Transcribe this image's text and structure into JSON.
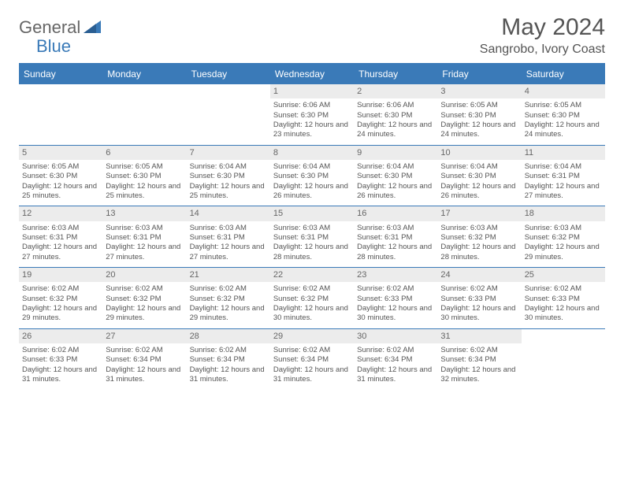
{
  "brand": {
    "part1": "General",
    "part2": "Blue"
  },
  "title": {
    "month_year": "May 2024",
    "location": "Sangrobo, Ivory Coast"
  },
  "colors": {
    "accent": "#3a7ab8",
    "header_text": "#ffffff",
    "daynum_bg": "#ececec",
    "body_text": "#555555",
    "background": "#ffffff"
  },
  "calendar": {
    "day_headers": [
      "Sunday",
      "Monday",
      "Tuesday",
      "Wednesday",
      "Thursday",
      "Friday",
      "Saturday"
    ],
    "weeks": [
      [
        null,
        null,
        null,
        {
          "n": "1",
          "sr": "6:06 AM",
          "ss": "6:30 PM",
          "dl": "12 hours and 23 minutes."
        },
        {
          "n": "2",
          "sr": "6:06 AM",
          "ss": "6:30 PM",
          "dl": "12 hours and 24 minutes."
        },
        {
          "n": "3",
          "sr": "6:05 AM",
          "ss": "6:30 PM",
          "dl": "12 hours and 24 minutes."
        },
        {
          "n": "4",
          "sr": "6:05 AM",
          "ss": "6:30 PM",
          "dl": "12 hours and 24 minutes."
        }
      ],
      [
        {
          "n": "5",
          "sr": "6:05 AM",
          "ss": "6:30 PM",
          "dl": "12 hours and 25 minutes."
        },
        {
          "n": "6",
          "sr": "6:05 AM",
          "ss": "6:30 PM",
          "dl": "12 hours and 25 minutes."
        },
        {
          "n": "7",
          "sr": "6:04 AM",
          "ss": "6:30 PM",
          "dl": "12 hours and 25 minutes."
        },
        {
          "n": "8",
          "sr": "6:04 AM",
          "ss": "6:30 PM",
          "dl": "12 hours and 26 minutes."
        },
        {
          "n": "9",
          "sr": "6:04 AM",
          "ss": "6:30 PM",
          "dl": "12 hours and 26 minutes."
        },
        {
          "n": "10",
          "sr": "6:04 AM",
          "ss": "6:30 PM",
          "dl": "12 hours and 26 minutes."
        },
        {
          "n": "11",
          "sr": "6:04 AM",
          "ss": "6:31 PM",
          "dl": "12 hours and 27 minutes."
        }
      ],
      [
        {
          "n": "12",
          "sr": "6:03 AM",
          "ss": "6:31 PM",
          "dl": "12 hours and 27 minutes."
        },
        {
          "n": "13",
          "sr": "6:03 AM",
          "ss": "6:31 PM",
          "dl": "12 hours and 27 minutes."
        },
        {
          "n": "14",
          "sr": "6:03 AM",
          "ss": "6:31 PM",
          "dl": "12 hours and 27 minutes."
        },
        {
          "n": "15",
          "sr": "6:03 AM",
          "ss": "6:31 PM",
          "dl": "12 hours and 28 minutes."
        },
        {
          "n": "16",
          "sr": "6:03 AM",
          "ss": "6:31 PM",
          "dl": "12 hours and 28 minutes."
        },
        {
          "n": "17",
          "sr": "6:03 AM",
          "ss": "6:32 PM",
          "dl": "12 hours and 28 minutes."
        },
        {
          "n": "18",
          "sr": "6:03 AM",
          "ss": "6:32 PM",
          "dl": "12 hours and 29 minutes."
        }
      ],
      [
        {
          "n": "19",
          "sr": "6:02 AM",
          "ss": "6:32 PM",
          "dl": "12 hours and 29 minutes."
        },
        {
          "n": "20",
          "sr": "6:02 AM",
          "ss": "6:32 PM",
          "dl": "12 hours and 29 minutes."
        },
        {
          "n": "21",
          "sr": "6:02 AM",
          "ss": "6:32 PM",
          "dl": "12 hours and 29 minutes."
        },
        {
          "n": "22",
          "sr": "6:02 AM",
          "ss": "6:32 PM",
          "dl": "12 hours and 30 minutes."
        },
        {
          "n": "23",
          "sr": "6:02 AM",
          "ss": "6:33 PM",
          "dl": "12 hours and 30 minutes."
        },
        {
          "n": "24",
          "sr": "6:02 AM",
          "ss": "6:33 PM",
          "dl": "12 hours and 30 minutes."
        },
        {
          "n": "25",
          "sr": "6:02 AM",
          "ss": "6:33 PM",
          "dl": "12 hours and 30 minutes."
        }
      ],
      [
        {
          "n": "26",
          "sr": "6:02 AM",
          "ss": "6:33 PM",
          "dl": "12 hours and 31 minutes."
        },
        {
          "n": "27",
          "sr": "6:02 AM",
          "ss": "6:34 PM",
          "dl": "12 hours and 31 minutes."
        },
        {
          "n": "28",
          "sr": "6:02 AM",
          "ss": "6:34 PM",
          "dl": "12 hours and 31 minutes."
        },
        {
          "n": "29",
          "sr": "6:02 AM",
          "ss": "6:34 PM",
          "dl": "12 hours and 31 minutes."
        },
        {
          "n": "30",
          "sr": "6:02 AM",
          "ss": "6:34 PM",
          "dl": "12 hours and 31 minutes."
        },
        {
          "n": "31",
          "sr": "6:02 AM",
          "ss": "6:34 PM",
          "dl": "12 hours and 32 minutes."
        },
        null
      ]
    ],
    "labels": {
      "sunrise": "Sunrise:",
      "sunset": "Sunset:",
      "daylight": "Daylight:"
    }
  }
}
